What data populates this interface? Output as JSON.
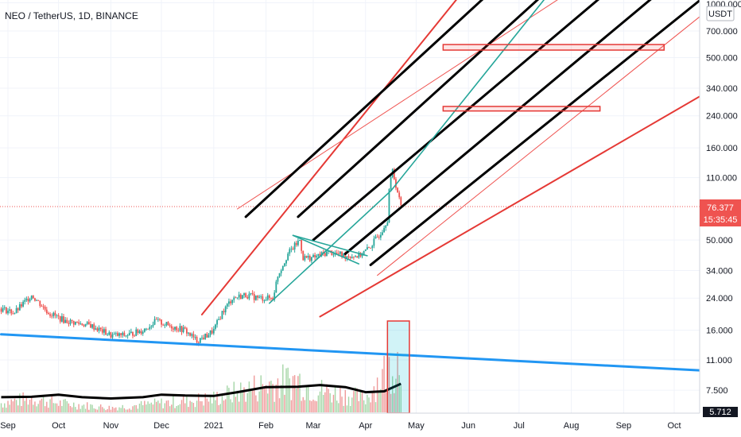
{
  "chart_data": {
    "type": "candlestick",
    "title": "NEO / TetherUS, 1D, BINANCE",
    "currency": "USDT",
    "y_scale": "log",
    "y_ticks": [
      "1000.000",
      "700.000",
      "500.000",
      "340.000",
      "240.000",
      "160.000",
      "110.000",
      "76.377",
      "50.000",
      "34.000",
      "24.000",
      "16.000",
      "11.000",
      "7.500",
      "5.712"
    ],
    "x_ticks": [
      "Sep",
      "Oct",
      "Nov",
      "Dec",
      "2021",
      "Feb",
      "Mar",
      "Apr",
      "May",
      "Jun",
      "Jul",
      "Aug",
      "Sep",
      "Oct"
    ],
    "last_price": {
      "value": "76.377",
      "countdown": "15:35:45"
    },
    "price_path": [
      [
        "2020-08-28",
        21
      ],
      [
        "2020-09-05",
        20
      ],
      [
        "2020-09-15",
        25
      ],
      [
        "2020-09-25",
        20
      ],
      [
        "2020-10-05",
        18
      ],
      [
        "2020-10-20",
        17
      ],
      [
        "2020-11-01",
        15
      ],
      [
        "2020-11-10",
        15
      ],
      [
        "2020-11-20",
        16
      ],
      [
        "2020-11-28",
        18
      ],
      [
        "2020-12-05",
        17
      ],
      [
        "2020-12-15",
        16
      ],
      [
        "2020-12-22",
        14
      ],
      [
        "2020-12-28",
        15
      ],
      [
        "2021-01-01",
        16
      ],
      [
        "2021-01-06",
        20
      ],
      [
        "2021-01-12",
        24
      ],
      [
        "2021-01-20",
        25
      ],
      [
        "2021-01-28",
        24
      ],
      [
        "2021-02-05",
        24
      ],
      [
        "2021-02-08",
        32
      ],
      [
        "2021-02-14",
        42
      ],
      [
        "2021-02-21",
        50
      ],
      [
        "2021-02-23",
        40
      ],
      [
        "2021-03-01",
        40
      ],
      [
        "2021-03-10",
        43
      ],
      [
        "2021-03-20",
        41
      ],
      [
        "2021-03-28",
        41
      ],
      [
        "2021-04-03",
        45
      ],
      [
        "2021-04-10",
        55
      ],
      [
        "2021-04-14",
        65
      ],
      [
        "2021-04-15",
        95
      ],
      [
        "2021-04-17",
        120
      ],
      [
        "2021-04-19",
        100
      ],
      [
        "2021-04-22",
        76.377
      ]
    ],
    "volume_path": [
      [
        "2020-08-28",
        2
      ],
      [
        "2020-09-15",
        3
      ],
      [
        "2020-10-01",
        2
      ],
      [
        "2020-11-01",
        1
      ],
      [
        "2020-12-01",
        2
      ],
      [
        "2021-01-01",
        3
      ],
      [
        "2021-02-01",
        6
      ],
      [
        "2021-02-20",
        7
      ],
      [
        "2021-03-01",
        5
      ],
      [
        "2021-04-01",
        3
      ],
      [
        "2021-04-15",
        10
      ],
      [
        "2021-04-22",
        12
      ]
    ],
    "volume_ma_path": [
      [
        "2020-08-28",
        3.6
      ],
      [
        "2020-09-15",
        3.7
      ],
      [
        "2020-10-01",
        4.2
      ],
      [
        "2020-10-15",
        3.6
      ],
      [
        "2020-11-01",
        3.3
      ],
      [
        "2020-11-20",
        3.6
      ],
      [
        "2020-12-01",
        4.2
      ],
      [
        "2020-12-15",
        4.0
      ],
      [
        "2021-01-01",
        3.9
      ],
      [
        "2021-01-15",
        4.8
      ],
      [
        "2021-02-01",
        6.0
      ],
      [
        "2021-02-20",
        6.1
      ],
      [
        "2021-03-05",
        6.5
      ],
      [
        "2021-03-20",
        6.0
      ],
      [
        "2021-04-01",
        4.8
      ],
      [
        "2021-04-12",
        5.0
      ],
      [
        "2021-04-22",
        6.8
      ]
    ],
    "drawings": {
      "red_channel": [
        {
          "from": [
            "2020-12-25",
            19.5
          ],
          "to": [
            "2021-05-27",
            1100
          ]
        },
        {
          "from": [
            "2021-01-15",
            74
          ],
          "to": [
            "2021-07-28",
            1100
          ]
        },
        {
          "from": [
            "2021-03-05",
            19
          ],
          "to": [
            "2021-12-01",
            540
          ]
        },
        {
          "from": [
            "2021-04-08",
            32
          ],
          "to": [
            "2021-11-01",
            1100
          ]
        }
      ],
      "black_channel": [
        {
          "from": [
            "2021-01-20",
            67
          ],
          "to": [
            "2021-06-12",
            1100
          ]
        },
        {
          "from": [
            "2021-02-20",
            67
          ],
          "to": [
            "2021-07-15",
            1100
          ]
        },
        {
          "from": [
            "2021-03-01",
            50
          ],
          "to": [
            "2021-08-20",
            1100
          ]
        },
        {
          "from": [
            "2021-03-20",
            42
          ],
          "to": [
            "2021-09-20",
            1100
          ]
        },
        {
          "from": [
            "2021-04-04",
            36.5
          ],
          "to": [
            "2021-10-20",
            1100
          ]
        }
      ],
      "teal_lines": [
        {
          "from": [
            "2021-02-03",
            22.5
          ],
          "to": [
            "2021-04-16",
            93
          ]
        },
        {
          "from": [
            "2021-04-16",
            93
          ],
          "to": [
            "2021-07-18",
            1100
          ]
        },
        {
          "from": [
            "2021-02-17",
            53
          ],
          "to": [
            "2021-03-28",
            37
          ]
        },
        {
          "from": [
            "2021-02-17",
            53
          ],
          "to": [
            "2021-04-02",
            41
          ]
        }
      ],
      "trend_line": {
        "from": [
          "2020-08-28",
          15.2
        ],
        "to": [
          "2021-10-20",
          9.6
        ]
      },
      "zones": [
        {
          "from": [
            "2021-05-17",
            590
          ],
          "to": [
            "2021-09-25",
            550
          ]
        },
        {
          "from": [
            "2021-05-17",
            270
          ],
          "to": [
            "2021-08-18",
            255
          ]
        }
      ],
      "volume_box": {
        "from": "2021-04-14",
        "to": "2021-04-27"
      }
    }
  }
}
